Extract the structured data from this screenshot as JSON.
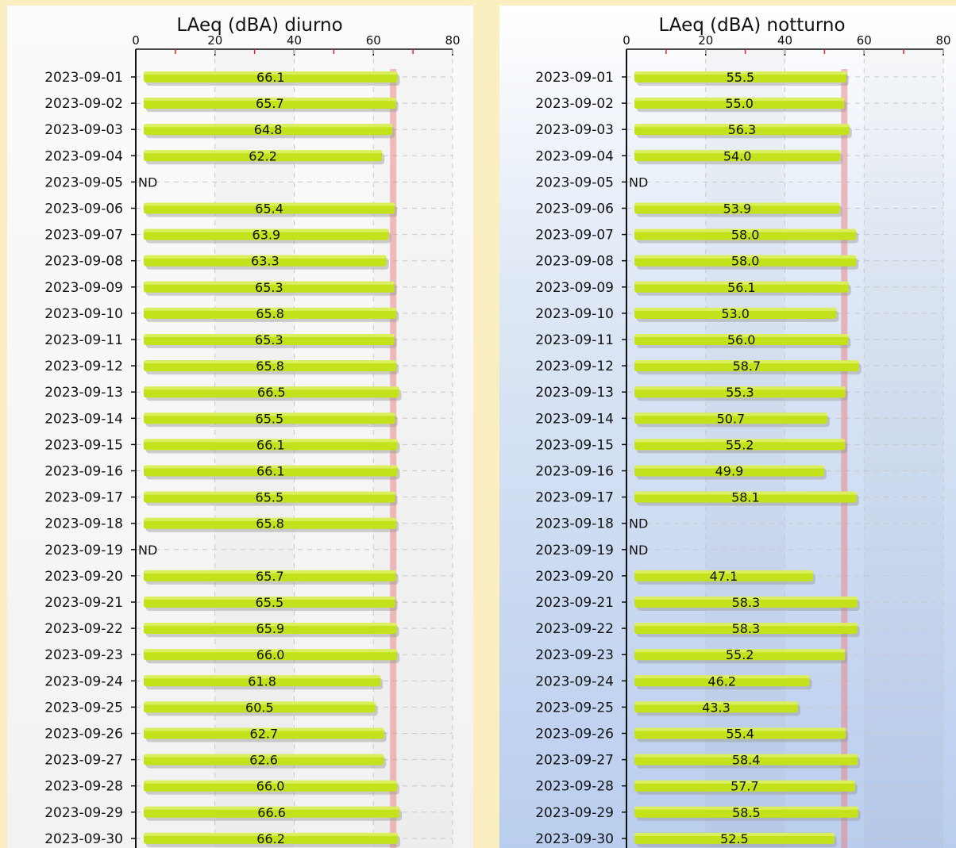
{
  "chart_data": [
    {
      "type": "bar",
      "orientation": "horizontal",
      "title": "LAeq (dBA) diurno",
      "xlim": [
        0,
        80
      ],
      "xticks": [
        0,
        20,
        40,
        60,
        80
      ],
      "grid": true,
      "limit_line": 65,
      "colors": {
        "bar": "#c4e21c",
        "limit": "#e8898a",
        "panel": "#f5f5f5"
      },
      "categories": [
        "2023-09-01",
        "2023-09-02",
        "2023-09-03",
        "2023-09-04",
        "2023-09-05",
        "2023-09-06",
        "2023-09-07",
        "2023-09-08",
        "2023-09-09",
        "2023-09-10",
        "2023-09-11",
        "2023-09-12",
        "2023-09-13",
        "2023-09-14",
        "2023-09-15",
        "2023-09-16",
        "2023-09-17",
        "2023-09-18",
        "2023-09-19",
        "2023-09-20",
        "2023-09-21",
        "2023-09-22",
        "2023-09-23",
        "2023-09-24",
        "2023-09-25",
        "2023-09-26",
        "2023-09-27",
        "2023-09-28",
        "2023-09-29",
        "2023-09-30"
      ],
      "values": [
        66.1,
        65.7,
        64.8,
        62.2,
        null,
        65.4,
        63.9,
        63.3,
        65.3,
        65.8,
        65.3,
        65.8,
        66.5,
        65.5,
        66.1,
        66.1,
        65.5,
        65.8,
        null,
        65.7,
        65.5,
        65.9,
        66.0,
        61.8,
        60.5,
        62.7,
        62.6,
        66.0,
        66.6,
        66.2
      ],
      "missing_label": "ND"
    },
    {
      "type": "bar",
      "orientation": "horizontal",
      "title": "LAeq (dBA) notturno",
      "xlim": [
        0,
        80
      ],
      "xticks": [
        0,
        20,
        40,
        60,
        80
      ],
      "grid": true,
      "limit_line": 55,
      "colors": {
        "bar": "#c4e21c",
        "limit": "#e8898a",
        "panel": "#c9d8f0"
      },
      "categories": [
        "2023-09-01",
        "2023-09-02",
        "2023-09-03",
        "2023-09-04",
        "2023-09-05",
        "2023-09-06",
        "2023-09-07",
        "2023-09-08",
        "2023-09-09",
        "2023-09-10",
        "2023-09-11",
        "2023-09-12",
        "2023-09-13",
        "2023-09-14",
        "2023-09-15",
        "2023-09-16",
        "2023-09-17",
        "2023-09-18",
        "2023-09-19",
        "2023-09-20",
        "2023-09-21",
        "2023-09-22",
        "2023-09-23",
        "2023-09-24",
        "2023-09-25",
        "2023-09-26",
        "2023-09-27",
        "2023-09-28",
        "2023-09-29",
        "2023-09-30"
      ],
      "values": [
        55.5,
        55.0,
        56.3,
        54.0,
        null,
        53.9,
        58.0,
        58.0,
        56.1,
        53.0,
        56.0,
        58.7,
        55.3,
        50.7,
        55.2,
        49.9,
        58.1,
        null,
        null,
        47.1,
        58.3,
        58.3,
        55.2,
        46.2,
        43.3,
        55.4,
        58.4,
        57.7,
        58.5,
        52.5
      ],
      "missing_label": "ND"
    }
  ]
}
